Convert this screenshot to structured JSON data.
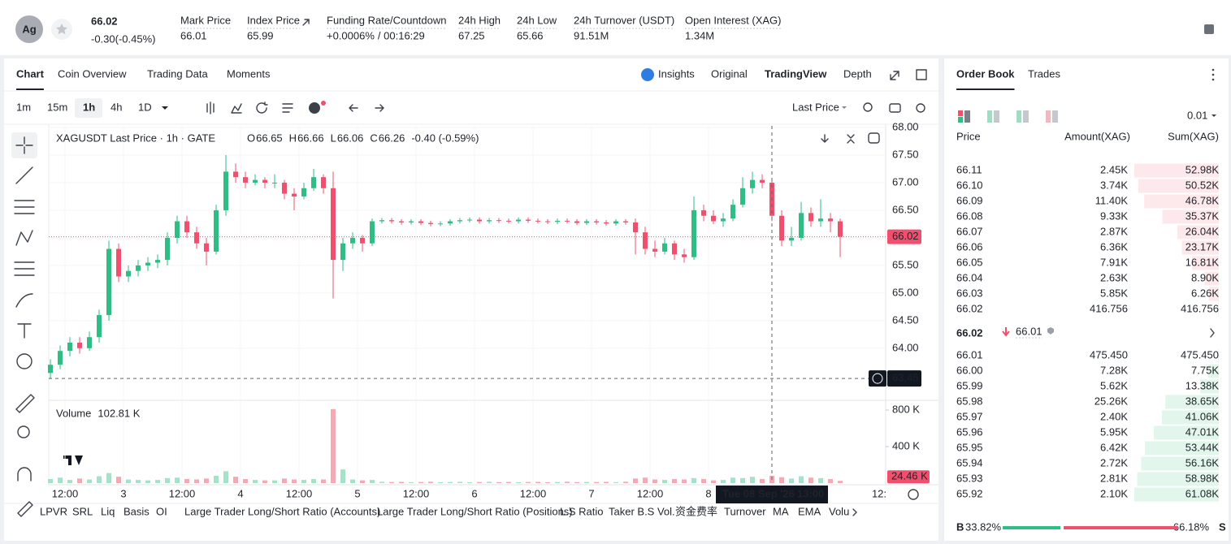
{
  "header": {
    "symbol_icon": "Ag",
    "price": "66.02",
    "change": "-0.30(-0.45%)",
    "stats": [
      {
        "label": "Mark Price",
        "value": "66.01"
      },
      {
        "label": "Index Price",
        "value": "65.99"
      },
      {
        "label": "Funding Rate/Countdown",
        "value": "+0.0006%",
        "countdown": "/ 00:16:29"
      },
      {
        "label": "24h High",
        "value": "67.25"
      },
      {
        "label": "24h Low",
        "value": "65.66"
      },
      {
        "label": "24h Turnover (USDT)",
        "value": "91.51M"
      },
      {
        "label": "Open Interest (XAG)",
        "value": "1.34M"
      }
    ]
  },
  "chart_tabs": [
    "Chart",
    "Coin Overview",
    "Trading Data",
    "Moments"
  ],
  "view_tabs": [
    "Insights",
    "Original",
    "TradingView",
    "Depth"
  ],
  "intervals": [
    "1m",
    "15m",
    "1h",
    "4h",
    "1D"
  ],
  "price_source": "Last Price",
  "indicators": [
    "LPVR",
    "SRL",
    "Liq",
    "Basis",
    "OI",
    "Large Trader Long/Short Ratio (Accounts)",
    "Large Trader Long/Short Ratio (Positions)",
    "L.S Ratio",
    "Taker B.S Vol.",
    "资金费率",
    "Turnover",
    "MA",
    "EMA",
    "Volu"
  ],
  "chart_data": {
    "type": "candlestick",
    "title": "XAGUSDT Last Price · 1h · GATE",
    "legend_ohlc": [
      {
        "k": "O",
        "v": "66.65"
      },
      {
        "k": "H",
        "v": "66.66"
      },
      {
        "k": "L",
        "v": "66.06"
      },
      {
        "k": "C",
        "v": "66.26"
      }
    ],
    "legend_change": "-0.40 (-0.59%)",
    "up_color": "#2ebd85",
    "down_color": "#f0506e",
    "ylim": [
      63.07,
      68.03
    ],
    "yticks": [
      {
        "value": 68,
        "label": "68.00"
      },
      {
        "value": 67.5,
        "label": "67.50"
      },
      {
        "value": 67,
        "label": "67.00"
      },
      {
        "value": 66.5,
        "label": "66.50"
      },
      {
        "value": 66,
        "label": "66.00"
      },
      {
        "value": 65.5,
        "label": "65.50"
      },
      {
        "value": 65,
        "label": "65.00"
      },
      {
        "value": 64.5,
        "label": "64.50"
      },
      {
        "value": 64,
        "label": "64.00"
      }
    ],
    "grid": true,
    "last_price": {
      "value": 66.02,
      "label": "66.02"
    },
    "crosshair_price": {
      "value": 63.45,
      "label": "63.45"
    },
    "crosshair_date": "Tue 08 Sep '26",
    "crosshair_time": "13:00",
    "xticks": [
      "12:00",
      "3",
      "12:00",
      "4",
      "12:00",
      "5",
      "12:00",
      "6",
      "12:00",
      "7",
      "12:00",
      "8",
      "12:"
    ],
    "candles": [
      [
        63.55,
        63.8,
        63.45,
        63.7
      ],
      [
        63.7,
        64.05,
        63.62,
        63.95
      ],
      [
        63.95,
        64.2,
        63.85,
        64.1
      ],
      [
        64.1,
        64.2,
        63.9,
        64.0
      ],
      [
        64.0,
        64.3,
        63.95,
        64.2
      ],
      [
        64.2,
        64.7,
        64.1,
        64.6
      ],
      [
        64.6,
        65.95,
        64.5,
        65.8
      ],
      [
        65.8,
        65.9,
        65.2,
        65.3
      ],
      [
        65.3,
        65.5,
        65.2,
        65.4
      ],
      [
        65.4,
        65.6,
        65.3,
        65.5
      ],
      [
        65.5,
        65.65,
        65.4,
        65.55
      ],
      [
        65.55,
        65.7,
        65.45,
        65.6
      ],
      [
        65.6,
        66.1,
        65.5,
        66.0
      ],
      [
        66.0,
        66.4,
        65.9,
        66.3
      ],
      [
        66.3,
        66.4,
        66.0,
        66.1
      ],
      [
        66.1,
        66.2,
        65.8,
        65.9
      ],
      [
        65.9,
        66.0,
        65.5,
        65.75
      ],
      [
        65.75,
        66.6,
        65.7,
        66.5
      ],
      [
        66.5,
        67.5,
        66.4,
        67.2
      ],
      [
        67.2,
        67.35,
        67.0,
        67.1
      ],
      [
        67.1,
        67.2,
        66.9,
        67.0
      ],
      [
        67.0,
        67.15,
        66.95,
        67.05
      ],
      [
        67.05,
        67.1,
        66.9,
        67.0
      ],
      [
        67.0,
        67.15,
        66.9,
        67.0
      ],
      [
        67.0,
        67.05,
        66.7,
        66.8
      ],
      [
        66.8,
        66.9,
        66.5,
        66.75
      ],
      [
        66.75,
        67.0,
        66.7,
        66.9
      ],
      [
        66.9,
        67.25,
        66.85,
        67.1
      ],
      [
        67.1,
        67.15,
        66.8,
        66.9
      ],
      [
        66.9,
        67.2,
        64.9,
        65.6
      ],
      [
        65.6,
        66.0,
        65.4,
        65.9
      ],
      [
        65.9,
        66.1,
        65.8,
        66.0
      ],
      [
        66.0,
        66.05,
        65.75,
        65.9
      ],
      [
        65.9,
        66.35,
        65.85,
        66.3
      ],
      [
        66.3,
        66.36,
        66.26,
        66.32
      ],
      [
        66.32,
        66.36,
        66.26,
        66.3
      ],
      [
        66.3,
        66.34,
        66.24,
        66.28
      ],
      [
        66.28,
        66.34,
        66.24,
        66.3
      ],
      [
        66.3,
        66.34,
        66.23,
        66.27
      ],
      [
        66.27,
        66.31,
        66.21,
        66.25
      ],
      [
        66.25,
        66.3,
        66.21,
        66.26
      ],
      [
        66.26,
        66.34,
        66.22,
        66.3
      ],
      [
        66.3,
        66.36,
        66.26,
        66.32
      ],
      [
        66.32,
        66.37,
        66.28,
        66.33
      ],
      [
        66.33,
        66.37,
        66.26,
        66.3
      ],
      [
        66.3,
        66.36,
        66.26,
        66.32
      ],
      [
        66.32,
        66.36,
        66.27,
        66.31
      ],
      [
        66.31,
        66.35,
        66.26,
        66.3
      ],
      [
        66.3,
        66.37,
        66.26,
        66.33
      ],
      [
        66.33,
        66.37,
        66.27,
        66.31
      ],
      [
        66.31,
        66.35,
        66.26,
        66.3
      ],
      [
        66.3,
        66.34,
        66.25,
        66.29
      ],
      [
        66.29,
        66.35,
        66.25,
        66.31
      ],
      [
        66.31,
        66.35,
        66.26,
        66.3
      ],
      [
        66.3,
        66.34,
        66.23,
        66.27
      ],
      [
        66.27,
        66.34,
        66.23,
        66.3
      ],
      [
        66.3,
        66.34,
        66.24,
        66.28
      ],
      [
        66.28,
        66.32,
        66.22,
        66.26
      ],
      [
        66.26,
        66.34,
        66.22,
        66.3
      ],
      [
        66.3,
        66.34,
        66.24,
        66.28
      ],
      [
        66.28,
        66.35,
        65.7,
        66.1
      ],
      [
        66.1,
        66.2,
        65.7,
        65.8
      ],
      [
        65.8,
        65.95,
        65.65,
        65.75
      ],
      [
        65.75,
        66.0,
        65.7,
        65.9
      ],
      [
        65.9,
        65.95,
        65.6,
        65.7
      ],
      [
        65.7,
        65.8,
        65.55,
        65.65
      ],
      [
        65.65,
        66.75,
        65.6,
        66.5
      ],
      [
        66.5,
        66.6,
        66.3,
        66.4
      ],
      [
        66.4,
        66.5,
        66.25,
        66.3
      ],
      [
        66.3,
        66.45,
        66.2,
        66.35
      ],
      [
        66.35,
        66.7,
        66.3,
        66.6
      ],
      [
        66.6,
        67.1,
        66.55,
        66.9
      ],
      [
        66.9,
        67.2,
        66.8,
        67.05
      ],
      [
        67.05,
        67.15,
        66.9,
        67.0
      ],
      [
        67.0,
        67.05,
        66.3,
        66.4
      ],
      [
        66.4,
        66.5,
        65.85,
        65.95
      ],
      [
        65.95,
        66.2,
        65.85,
        66.0
      ],
      [
        66.0,
        66.65,
        65.95,
        66.45
      ],
      [
        66.45,
        66.55,
        66.2,
        66.3
      ],
      [
        66.3,
        66.7,
        66.2,
        66.35
      ],
      [
        66.35,
        66.45,
        66.1,
        66.3
      ],
      [
        66.3,
        66.35,
        65.65,
        66.02
      ]
    ],
    "volume_title": "Volume",
    "volume_current": {
      "value": 102.81,
      "label": "102.81 K"
    },
    "volume_last": {
      "value": 24.46,
      "label": "24.46 K"
    },
    "volume_ylim": [
      0,
      889
    ],
    "volume_yticks": [
      {
        "value": 800,
        "label": "800 K"
      },
      {
        "value": 400,
        "label": "400 K"
      }
    ],
    "volumes": [
      45,
      60,
      35,
      50,
      40,
      75,
      110,
      70,
      40,
      35,
      30,
      35,
      55,
      60,
      45,
      40,
      50,
      80,
      130,
      70,
      45,
      35,
      30,
      30,
      50,
      40,
      35,
      45,
      40,
      810,
      150,
      40,
      30,
      35,
      15,
      12,
      14,
      10,
      12,
      15,
      10,
      12,
      14,
      10,
      12,
      15,
      11,
      13,
      10,
      12,
      14,
      10,
      12,
      15,
      11,
      13,
      12,
      14,
      10,
      15,
      50,
      60,
      40,
      35,
      45,
      40,
      55,
      45,
      30,
      35,
      60,
      55,
      70,
      45,
      80,
      65,
      50,
      75,
      60,
      55,
      45,
      24.46
    ]
  },
  "order_book": {
    "tabs": [
      "Order Book",
      "Trades"
    ],
    "precision": "0.01",
    "columns": [
      "Price",
      "Amount(XAG)",
      "Sum(XAG)"
    ],
    "asks": [
      [
        "66.11",
        "2.45K",
        "52.98K"
      ],
      [
        "66.10",
        "3.74K",
        "50.52K"
      ],
      [
        "66.09",
        "11.40K",
        "46.78K"
      ],
      [
        "66.08",
        "9.33K",
        "35.37K"
      ],
      [
        "66.07",
        "2.87K",
        "26.04K"
      ],
      [
        "66.06",
        "6.36K",
        "23.17K"
      ],
      [
        "66.05",
        "7.91K",
        "16.81K"
      ],
      [
        "66.04",
        "2.63K",
        "8.90K"
      ],
      [
        "66.03",
        "5.85K",
        "6.26K"
      ],
      [
        "66.02",
        "416.756",
        "416.756"
      ]
    ],
    "ask_depth": [
      52980,
      50520,
      46780,
      35370,
      26040,
      23170,
      16810,
      8900,
      6260,
      416.756
    ],
    "mid_price": "66.02",
    "mark_price": "66.01",
    "bids": [
      [
        "66.01",
        "475.450",
        "475.450"
      ],
      [
        "66.00",
        "7.28K",
        "7.75K"
      ],
      [
        "65.99",
        "5.62K",
        "13.38K"
      ],
      [
        "65.98",
        "25.26K",
        "38.65K"
      ],
      [
        "65.97",
        "2.40K",
        "41.06K"
      ],
      [
        "65.96",
        "5.95K",
        "47.01K"
      ],
      [
        "65.95",
        "6.42K",
        "53.44K"
      ],
      [
        "65.94",
        "2.72K",
        "56.16K"
      ],
      [
        "65.93",
        "2.81K",
        "58.98K"
      ],
      [
        "65.92",
        "2.10K",
        "61.08K"
      ]
    ],
    "bid_depth": [
      475.45,
      7750,
      13380,
      38650,
      41060,
      47010,
      53440,
      56160,
      58980,
      61080
    ],
    "buy_tag": "B",
    "buy": {
      "value": 33.82,
      "label": "33.82%"
    },
    "sell": {
      "value": 66.18,
      "label": "66.18%"
    },
    "sell_tag": "S"
  }
}
